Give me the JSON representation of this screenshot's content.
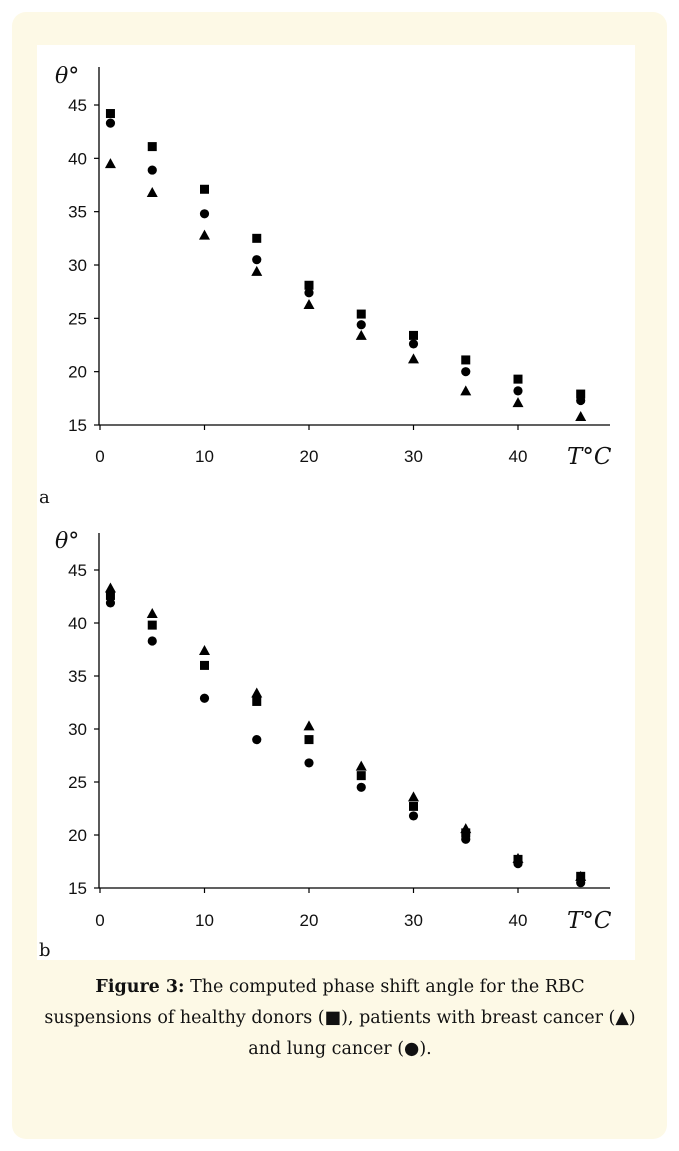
{
  "charts": [
    {
      "chart_data": {
        "type": "scatter",
        "panel_label": "a",
        "ylabel": "θ°",
        "xlabel": "T°C",
        "xlim": [
          0,
          48
        ],
        "ylim": [
          15,
          45
        ],
        "xticks": [
          0,
          10,
          20,
          30,
          40
        ],
        "yticks": [
          15,
          20,
          25,
          30,
          35,
          40,
          45
        ],
        "grid": false,
        "series": [
          {
            "marker": "square",
            "x": [
              1,
              5,
              10,
              15,
              20,
              25,
              30,
              35,
              40,
              46
            ],
            "y": [
              44.2,
              41.1,
              37.1,
              32.5,
              28.1,
              25.4,
              23.4,
              21.1,
              19.3,
              17.9
            ]
          },
          {
            "marker": "circle",
            "x": [
              1,
              5,
              10,
              15,
              20,
              25,
              30,
              35,
              40,
              46
            ],
            "y": [
              43.3,
              38.9,
              34.8,
              30.5,
              27.4,
              24.4,
              22.6,
              20.0,
              18.2,
              17.3
            ]
          },
          {
            "marker": "triangle",
            "x": [
              1,
              5,
              10,
              15,
              20,
              25,
              30,
              35,
              40,
              46
            ],
            "y": [
              39.5,
              36.8,
              32.8,
              29.4,
              26.3,
              23.4,
              21.2,
              18.2,
              17.1,
              15.8
            ]
          }
        ]
      }
    },
    {
      "chart_data": {
        "type": "scatter",
        "panel_label": "b",
        "ylabel": "θ°",
        "xlabel": "T°C",
        "xlim": [
          0,
          48
        ],
        "ylim": [
          15,
          45
        ],
        "xticks": [
          0,
          10,
          20,
          30,
          40
        ],
        "yticks": [
          15,
          20,
          25,
          30,
          35,
          40,
          45
        ],
        "grid": false,
        "series": [
          {
            "marker": "triangle",
            "x": [
              1,
              5,
              10,
              15,
              20,
              25,
              30,
              35,
              40,
              46
            ],
            "y": [
              43.3,
              40.9,
              37.4,
              33.4,
              30.3,
              26.5,
              23.6,
              20.6,
              17.8,
              16.1
            ]
          },
          {
            "marker": "square",
            "x": [
              1,
              5,
              10,
              15,
              20,
              25,
              30,
              35,
              40,
              46
            ],
            "y": [
              42.6,
              39.8,
              36.0,
              32.6,
              29.0,
              25.6,
              22.7,
              20.2,
              17.7,
              16.1
            ]
          },
          {
            "marker": "circle",
            "x": [
              1,
              5,
              10,
              15,
              20,
              25,
              30,
              35,
              40,
              46
            ],
            "y": [
              41.9,
              38.3,
              32.9,
              29.0,
              26.8,
              24.5,
              21.8,
              19.6,
              17.3,
              15.5
            ]
          }
        ]
      }
    }
  ],
  "caption": {
    "label": "Figure 3:",
    "text": " The computed phase shift angle   for the RBC suspensions of healthy donors (■), patients with breast cancer (▲) and lung cancer (●)."
  }
}
